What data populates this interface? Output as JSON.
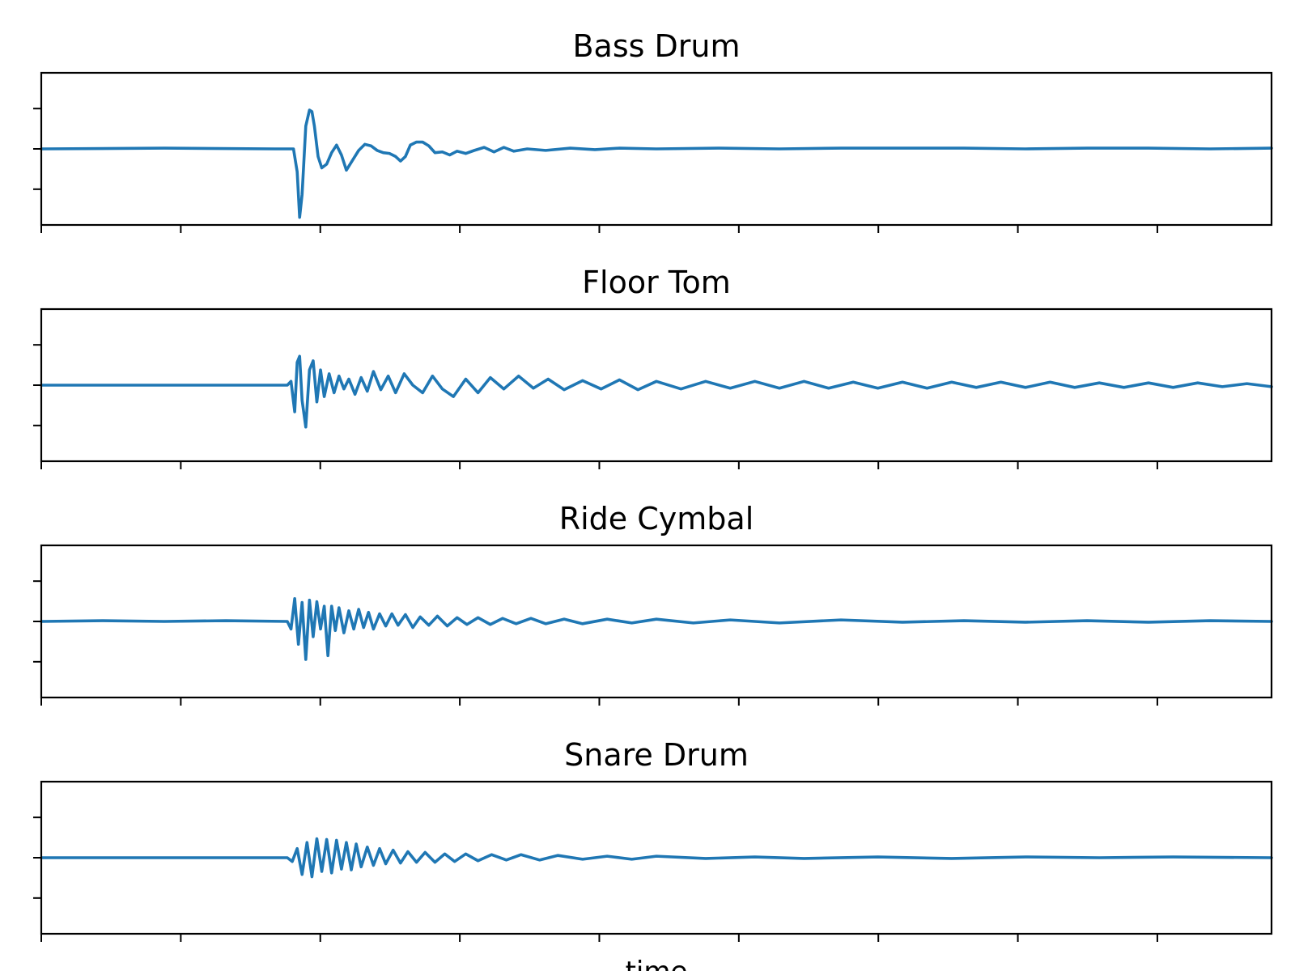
{
  "chart_data": [
    {
      "type": "line",
      "title": "Bass Drum",
      "color": "#1f77b4",
      "xlim": [
        0,
        1
      ],
      "ylim": [
        -1,
        1
      ],
      "xticks": [
        0,
        0.1134,
        0.2268,
        0.3402,
        0.4536,
        0.567,
        0.6804,
        0.7938,
        0.9072
      ],
      "yticks": [
        -0.53,
        0,
        0.53
      ],
      "tick_labels_visible": false,
      "x": [
        0,
        0.1,
        0.19,
        0.205,
        0.208,
        0.21,
        0.212,
        0.215,
        0.218,
        0.22,
        0.222,
        0.225,
        0.228,
        0.232,
        0.236,
        0.24,
        0.244,
        0.248,
        0.253,
        0.258,
        0.263,
        0.268,
        0.273,
        0.278,
        0.283,
        0.288,
        0.292,
        0.296,
        0.3,
        0.305,
        0.31,
        0.315,
        0.32,
        0.326,
        0.332,
        0.338,
        0.345,
        0.352,
        0.36,
        0.368,
        0.376,
        0.384,
        0.395,
        0.41,
        0.43,
        0.45,
        0.47,
        0.5,
        0.55,
        0.6,
        0.65,
        0.7,
        0.75,
        0.8,
        0.85,
        0.9,
        0.95,
        1.0
      ],
      "y": [
        0,
        0.01,
        0.0,
        0.0,
        -0.3,
        -0.9,
        -0.6,
        0.3,
        0.51,
        0.49,
        0.3,
        -0.1,
        -0.25,
        -0.2,
        -0.05,
        0.05,
        -0.08,
        -0.28,
        -0.15,
        -0.02,
        0.06,
        0.04,
        -0.02,
        -0.05,
        -0.06,
        -0.1,
        -0.16,
        -0.1,
        0.05,
        0.09,
        0.09,
        0.04,
        -0.05,
        -0.04,
        -0.08,
        -0.03,
        -0.06,
        -0.02,
        0.02,
        -0.04,
        0.02,
        -0.03,
        0.0,
        -0.02,
        0.01,
        -0.01,
        0.01,
        0.0,
        0.01,
        0.0,
        0.01,
        0.01,
        0.01,
        0.0,
        0.01,
        0.01,
        0.0,
        0.01
      ]
    },
    {
      "type": "line",
      "title": "Floor Tom",
      "color": "#1f77b4",
      "xlim": [
        0,
        1
      ],
      "ylim": [
        -1,
        1
      ],
      "xticks": [
        0,
        0.1134,
        0.2268,
        0.3402,
        0.4536,
        0.567,
        0.6804,
        0.7938,
        0.9072
      ],
      "yticks": [
        -0.53,
        0,
        0.53
      ],
      "tick_labels_visible": false,
      "x": [
        0,
        0.1,
        0.2,
        0.203,
        0.206,
        0.208,
        0.21,
        0.212,
        0.215,
        0.218,
        0.221,
        0.224,
        0.227,
        0.23,
        0.234,
        0.238,
        0.242,
        0.246,
        0.25,
        0.255,
        0.26,
        0.265,
        0.27,
        0.276,
        0.282,
        0.288,
        0.295,
        0.302,
        0.31,
        0.318,
        0.326,
        0.335,
        0.345,
        0.355,
        0.365,
        0.376,
        0.388,
        0.4,
        0.412,
        0.425,
        0.44,
        0.455,
        0.47,
        0.485,
        0.5,
        0.52,
        0.54,
        0.56,
        0.58,
        0.6,
        0.62,
        0.64,
        0.66,
        0.68,
        0.7,
        0.72,
        0.74,
        0.76,
        0.78,
        0.8,
        0.82,
        0.84,
        0.86,
        0.88,
        0.9,
        0.92,
        0.94,
        0.96,
        0.98,
        1.0
      ],
      "y": [
        0,
        0,
        0,
        0.05,
        -0.35,
        0.3,
        0.38,
        -0.2,
        -0.55,
        0.2,
        0.32,
        -0.22,
        0.2,
        -0.15,
        0.15,
        -0.1,
        0.12,
        -0.05,
        0.08,
        -0.12,
        0.1,
        -0.08,
        0.18,
        -0.06,
        0.12,
        -0.1,
        0.15,
        0.0,
        -0.1,
        0.12,
        -0.05,
        -0.15,
        0.08,
        -0.1,
        0.1,
        -0.05,
        0.12,
        -0.04,
        0.08,
        -0.06,
        0.06,
        -0.05,
        0.07,
        -0.06,
        0.05,
        -0.05,
        0.05,
        -0.04,
        0.05,
        -0.04,
        0.05,
        -0.04,
        0.04,
        -0.04,
        0.04,
        -0.04,
        0.04,
        -0.03,
        0.04,
        -0.03,
        0.04,
        -0.03,
        0.03,
        -0.03,
        0.03,
        -0.03,
        0.03,
        -0.02,
        0.02,
        -0.02
      ]
    },
    {
      "type": "line",
      "title": "Ride Cymbal",
      "color": "#1f77b4",
      "xlim": [
        0,
        1
      ],
      "ylim": [
        -1,
        1
      ],
      "xticks": [
        0,
        0.1134,
        0.2268,
        0.3402,
        0.4536,
        0.567,
        0.6804,
        0.7938,
        0.9072
      ],
      "yticks": [
        -0.53,
        0,
        0.53
      ],
      "tick_labels_visible": false,
      "x": [
        0,
        0.05,
        0.1,
        0.15,
        0.2,
        0.203,
        0.206,
        0.209,
        0.212,
        0.215,
        0.218,
        0.221,
        0.224,
        0.227,
        0.23,
        0.233,
        0.236,
        0.239,
        0.242,
        0.246,
        0.25,
        0.254,
        0.258,
        0.262,
        0.266,
        0.27,
        0.275,
        0.28,
        0.285,
        0.29,
        0.296,
        0.302,
        0.308,
        0.315,
        0.322,
        0.33,
        0.338,
        0.346,
        0.355,
        0.365,
        0.375,
        0.386,
        0.398,
        0.41,
        0.425,
        0.44,
        0.46,
        0.48,
        0.5,
        0.53,
        0.56,
        0.6,
        0.65,
        0.7,
        0.75,
        0.8,
        0.85,
        0.9,
        0.95,
        1.0
      ],
      "y": [
        0,
        0.01,
        0,
        0.01,
        0,
        -0.1,
        0.3,
        -0.3,
        0.25,
        -0.5,
        0.28,
        -0.2,
        0.26,
        -0.1,
        0.2,
        -0.45,
        0.2,
        -0.12,
        0.18,
        -0.15,
        0.14,
        -0.1,
        0.16,
        -0.08,
        0.12,
        -0.1,
        0.1,
        -0.06,
        0.1,
        -0.05,
        0.09,
        -0.08,
        0.06,
        -0.05,
        0.07,
        -0.06,
        0.05,
        -0.04,
        0.05,
        -0.04,
        0.04,
        -0.03,
        0.04,
        -0.03,
        0.03,
        -0.03,
        0.03,
        -0.02,
        0.03,
        -0.02,
        0.02,
        -0.02,
        0.02,
        -0.01,
        0.01,
        -0.01,
        0.01,
        -0.01,
        0.01,
        0.0
      ]
    },
    {
      "type": "line",
      "title": "Snare Drum",
      "color": "#1f77b4",
      "xlim": [
        0,
        1
      ],
      "ylim": [
        -1,
        1
      ],
      "xticks": [
        0,
        0.1134,
        0.2268,
        0.3402,
        0.4536,
        0.567,
        0.6804,
        0.7938,
        0.9072
      ],
      "yticks": [
        -0.53,
        0,
        0.53
      ],
      "xlabel": "time",
      "tick_labels_visible": false,
      "x": [
        0,
        0.05,
        0.1,
        0.15,
        0.2,
        0.204,
        0.208,
        0.212,
        0.216,
        0.22,
        0.224,
        0.228,
        0.232,
        0.236,
        0.24,
        0.244,
        0.248,
        0.252,
        0.256,
        0.26,
        0.265,
        0.27,
        0.275,
        0.28,
        0.286,
        0.292,
        0.298,
        0.305,
        0.312,
        0.32,
        0.328,
        0.336,
        0.345,
        0.355,
        0.366,
        0.378,
        0.39,
        0.405,
        0.42,
        0.44,
        0.46,
        0.48,
        0.5,
        0.54,
        0.58,
        0.62,
        0.68,
        0.74,
        0.8,
        0.86,
        0.92,
        1.0
      ],
      "y": [
        0,
        0,
        0,
        0,
        0,
        -0.05,
        0.12,
        -0.22,
        0.2,
        -0.25,
        0.25,
        -0.18,
        0.24,
        -0.2,
        0.23,
        -0.15,
        0.2,
        -0.16,
        0.18,
        -0.12,
        0.14,
        -0.1,
        0.12,
        -0.08,
        0.1,
        -0.07,
        0.08,
        -0.06,
        0.07,
        -0.06,
        0.05,
        -0.05,
        0.05,
        -0.04,
        0.04,
        -0.03,
        0.04,
        -0.03,
        0.03,
        -0.02,
        0.02,
        -0.02,
        0.02,
        -0.01,
        0.01,
        -0.01,
        0.01,
        -0.01,
        0.01,
        0.0,
        0.01,
        0.0
      ]
    }
  ]
}
